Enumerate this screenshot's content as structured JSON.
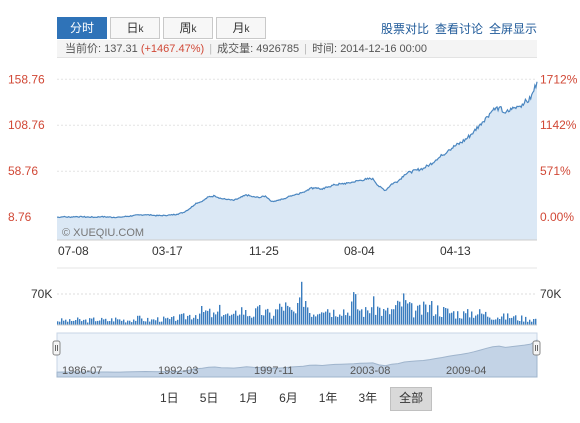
{
  "tabs": [
    {
      "label": "分时",
      "suffix": "",
      "active": true
    },
    {
      "label": "日",
      "suffix": "k",
      "active": false
    },
    {
      "label": "周",
      "suffix": "k",
      "active": false
    },
    {
      "label": "月",
      "suffix": "k",
      "active": false
    }
  ],
  "links": [
    "股票对比",
    "查看讨论",
    "全屏显示"
  ],
  "info": {
    "price_label": "当前价:",
    "price": "137.31",
    "change": "(+1467.47%)",
    "volume_label": "成交量:",
    "volume": "4926785",
    "time_label": "时间:",
    "time": "2014-12-16 00:00"
  },
  "watermark": "© XUEQIU.COM",
  "periods": [
    {
      "label": "1日",
      "active": false
    },
    {
      "label": "5日",
      "active": false
    },
    {
      "label": "1月",
      "active": false
    },
    {
      "label": "6月",
      "active": false
    },
    {
      "label": "1年",
      "active": false
    },
    {
      "label": "3年",
      "active": false
    },
    {
      "label": "全部",
      "active": true
    }
  ],
  "colors": {
    "price_labels": "#d14836",
    "line": "#4a86c0",
    "fill": "#dbe8f5",
    "volume": "#3a7dbf"
  },
  "chart_data": {
    "type": "area",
    "price_axis_labels": [
      "158.76",
      "108.76",
      "58.76",
      "8.76"
    ],
    "price_axis_values": [
      158.76,
      108.76,
      58.76,
      8.76
    ],
    "pct_axis_labels": [
      "1712%",
      "1142%",
      "571%",
      "0.00%"
    ],
    "x_tick_labels": [
      "07-08",
      "03-17",
      "11-25",
      "08-04",
      "04-13"
    ],
    "ylim": [
      -16,
      171
    ],
    "series": [
      {
        "values": [
          8.8,
          9.2,
          8.9,
          9.5,
          9.1,
          9.0,
          8.8,
          9.3,
          9.1,
          8.7,
          8.9,
          9.6,
          10.4,
          11.2,
          11.5,
          11.0,
          10.4,
          10.8,
          11.2,
          12.0,
          14.0,
          18.0,
          24.0,
          26.0,
          31.0,
          32.0,
          29.0,
          28.0,
          27.0,
          30.0,
          33.0,
          31.0,
          30.0,
          32.0,
          26.0,
          27.0,
          29.0,
          32.0,
          34.0,
          36.0,
          40.0,
          41.0,
          39.0,
          42.0,
          44.0,
          45.0,
          46.0,
          47.0,
          49.0,
          50.0,
          51.0,
          42.0,
          38.0,
          45.0,
          48.0,
          55.0,
          58.0,
          60.0,
          62.0,
          66.0,
          71.0,
          76.0,
          82.0,
          86.0,
          90.0,
          95.0,
          102.0,
          110.0,
          118.0,
          125.0,
          128.0,
          122.0,
          126.0,
          129.0,
          133.0,
          137.31,
          156.0
        ]
      }
    ],
    "volume": {
      "axis_label": "70K",
      "values": [
        10,
        11,
        9,
        12,
        10,
        11,
        13,
        12,
        10,
        14,
        12,
        11,
        13,
        15,
        12,
        11,
        14,
        13,
        12,
        16,
        18,
        22,
        25,
        30,
        28,
        20,
        35,
        22,
        18,
        40,
        26,
        24,
        32,
        28,
        22,
        36,
        45,
        30,
        25,
        80,
        34,
        28,
        50,
        38,
        30,
        42,
        26,
        60,
        35,
        30,
        45,
        38,
        28,
        32,
        40,
        55,
        36,
        30,
        34,
        42,
        38,
        33,
        30,
        28,
        26,
        24,
        30,
        27,
        25,
        22,
        20,
        18,
        20,
        16,
        15,
        14,
        13
      ],
      "max": 120
    },
    "navigator": {
      "tick_labels": [
        "1986-07",
        "1992-03",
        "1997-11",
        "2003-08",
        "2009-04"
      ]
    }
  }
}
